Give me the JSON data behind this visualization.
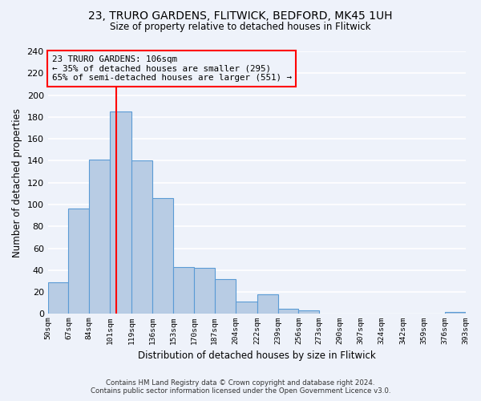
{
  "title": "23, TRURO GARDENS, FLITWICK, BEDFORD, MK45 1UH",
  "subtitle": "Size of property relative to detached houses in Flitwick",
  "xlabel": "Distribution of detached houses by size in Flitwick",
  "ylabel": "Number of detached properties",
  "bar_color": "#b8cce4",
  "bar_edge_color": "#5b9bd5",
  "vline_x": 106,
  "vline_color": "red",
  "annotation_lines": [
    "23 TRURO GARDENS: 106sqm",
    "← 35% of detached houses are smaller (295)",
    "65% of semi-detached houses are larger (551) →"
  ],
  "annotation_box_edge": "red",
  "bins": [
    50,
    67,
    84,
    101,
    119,
    136,
    153,
    170,
    187,
    204,
    222,
    239,
    256,
    273,
    290,
    307,
    324,
    342,
    359,
    376,
    393
  ],
  "counts": [
    29,
    96,
    141,
    185,
    140,
    106,
    43,
    42,
    32,
    11,
    18,
    5,
    3,
    0,
    0,
    0,
    0,
    0,
    0,
    2
  ],
  "ylim": [
    0,
    240
  ],
  "yticks": [
    0,
    20,
    40,
    60,
    80,
    100,
    120,
    140,
    160,
    180,
    200,
    220,
    240
  ],
  "tick_labels": [
    "50sqm",
    "67sqm",
    "84sqm",
    "101sqm",
    "119sqm",
    "136sqm",
    "153sqm",
    "170sqm",
    "187sqm",
    "204sqm",
    "222sqm",
    "239sqm",
    "256sqm",
    "273sqm",
    "290sqm",
    "307sqm",
    "324sqm",
    "342sqm",
    "359sqm",
    "376sqm",
    "393sqm"
  ],
  "footer_line1": "Contains HM Land Registry data © Crown copyright and database right 2024.",
  "footer_line2": "Contains public sector information licensed under the Open Government Licence v3.0.",
  "background_color": "#eef2fa"
}
